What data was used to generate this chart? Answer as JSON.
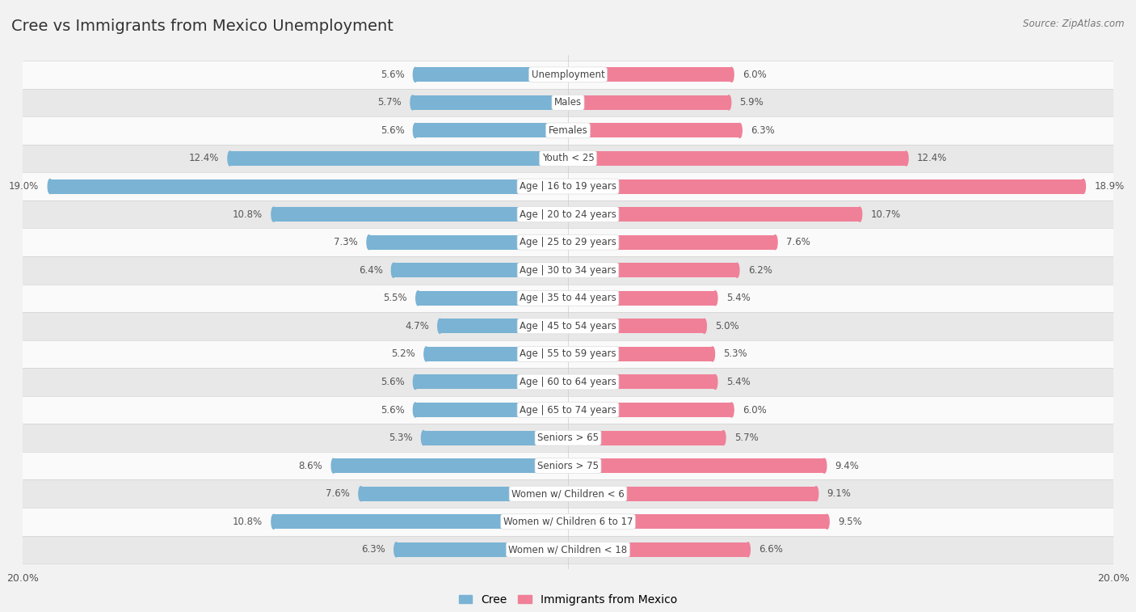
{
  "title": "Cree vs Immigrants from Mexico Unemployment",
  "source": "Source: ZipAtlas.com",
  "categories": [
    "Unemployment",
    "Males",
    "Females",
    "Youth < 25",
    "Age | 16 to 19 years",
    "Age | 20 to 24 years",
    "Age | 25 to 29 years",
    "Age | 30 to 34 years",
    "Age | 35 to 44 years",
    "Age | 45 to 54 years",
    "Age | 55 to 59 years",
    "Age | 60 to 64 years",
    "Age | 65 to 74 years",
    "Seniors > 65",
    "Seniors > 75",
    "Women w/ Children < 6",
    "Women w/ Children 6 to 17",
    "Women w/ Children < 18"
  ],
  "cree_values": [
    5.6,
    5.7,
    5.6,
    12.4,
    19.0,
    10.8,
    7.3,
    6.4,
    5.5,
    4.7,
    5.2,
    5.6,
    5.6,
    5.3,
    8.6,
    7.6,
    10.8,
    6.3
  ],
  "mexico_values": [
    6.0,
    5.9,
    6.3,
    12.4,
    18.9,
    10.7,
    7.6,
    6.2,
    5.4,
    5.0,
    5.3,
    5.4,
    6.0,
    5.7,
    9.4,
    9.1,
    9.5,
    6.6
  ],
  "cree_color": "#7ab3d4",
  "mexico_color": "#f08098",
  "bg_color": "#f2f2f2",
  "row_bg_even": "#fafafa",
  "row_bg_odd": "#e8e8e8",
  "max_val": 20.0,
  "label_fontsize": 8.5,
  "title_fontsize": 14,
  "bar_height": 0.52
}
